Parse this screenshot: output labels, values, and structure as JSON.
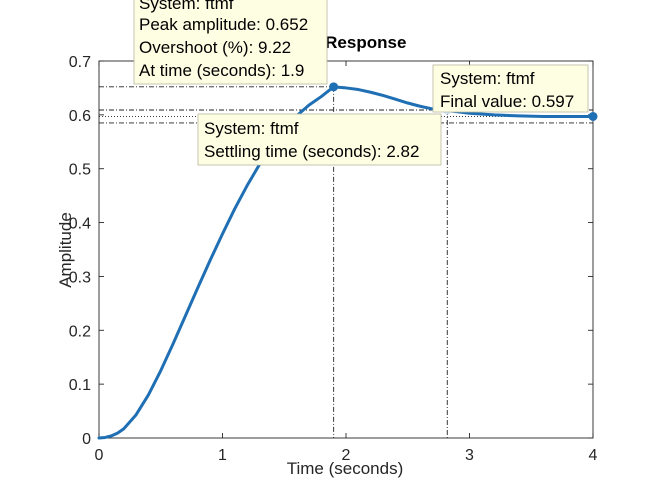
{
  "chart_data": {
    "type": "line",
    "title": "Step Response",
    "xlabel": "Time (seconds)",
    "ylabel": "Amplitude",
    "xlim": [
      0,
      4
    ],
    "ylim": [
      0,
      0.7
    ],
    "x_ticks": [
      "0",
      "1",
      "2",
      "3",
      "4"
    ],
    "y_ticks": [
      "0",
      "0.1",
      "0.2",
      "0.3",
      "0.4",
      "0.5",
      "0.6",
      "0.7"
    ],
    "grid": false,
    "series": [
      {
        "name": "ftmf",
        "color": "#1f6fb4",
        "x": [
          0,
          0.05,
          0.1,
          0.15,
          0.2,
          0.3,
          0.4,
          0.5,
          0.6,
          0.7,
          0.8,
          0.9,
          1.0,
          1.1,
          1.2,
          1.3,
          1.4,
          1.5,
          1.6,
          1.7,
          1.8,
          1.9,
          2.0,
          2.1,
          2.2,
          2.3,
          2.4,
          2.5,
          2.6,
          2.7,
          2.82,
          3.0,
          3.2,
          3.4,
          3.6,
          3.8,
          4.0
        ],
        "y": [
          0,
          0.001,
          0.004,
          0.009,
          0.017,
          0.043,
          0.08,
          0.125,
          0.175,
          0.227,
          0.279,
          0.33,
          0.379,
          0.426,
          0.469,
          0.508,
          0.543,
          0.573,
          0.598,
          0.618,
          0.634,
          0.652,
          0.65,
          0.647,
          0.642,
          0.636,
          0.629,
          0.622,
          0.616,
          0.611,
          0.608,
          0.603,
          0.6,
          0.598,
          0.597,
          0.597,
          0.597
        ]
      }
    ],
    "reference_lines": {
      "peak_amplitude": 0.652,
      "peak_time": 1.9,
      "settling_time": 2.82,
      "settling_band": [
        0.585,
        0.609
      ],
      "final_value": 0.597
    },
    "markers": [
      {
        "name": "peak-marker",
        "x": 1.9,
        "y": 0.652,
        "color": "#1f6fb4"
      },
      {
        "name": "settling-marker",
        "x": 2.82,
        "y": 0.609,
        "color": "#cfe3f5"
      },
      {
        "name": "final-marker",
        "x": 4.0,
        "y": 0.597,
        "color": "#1f6fb4"
      }
    ],
    "annotations": {
      "peak": {
        "system": "System: ftmf",
        "peak_amplitude": "Peak amplitude: 0.652",
        "overshoot": "Overshoot (%): 9.22",
        "at_time": "At time (seconds): 1.9"
      },
      "settling": {
        "system": "System: ftmf",
        "settling_time": "Settling time (seconds): 2.82"
      },
      "final": {
        "system": "System: ftmf",
        "final_value": "Final value: 0.597"
      }
    },
    "tip_background": "#fefee3"
  }
}
